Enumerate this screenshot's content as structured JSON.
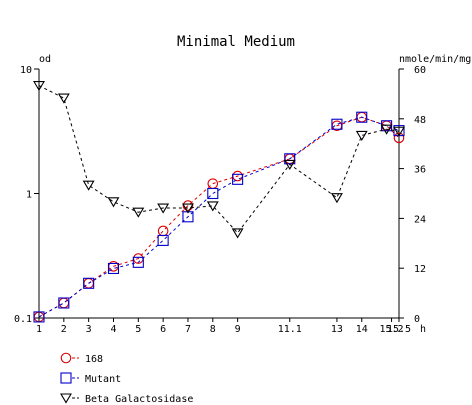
{
  "chart_data": {
    "type": "line",
    "title": "Minimal Medium",
    "left_axis": {
      "label": "od",
      "scale": "log",
      "range": [
        0.1,
        10
      ],
      "ticks": [
        {
          "value": 10,
          "label": "10"
        },
        {
          "value": 1,
          "label": "1"
        },
        {
          "value": 0.1,
          "label": "0.1"
        }
      ]
    },
    "right_axis": {
      "label": "nmole/min/mg",
      "scale": "linear",
      "range": [
        0,
        60
      ],
      "ticks": [
        {
          "value": 60,
          "label": "60"
        },
        {
          "value": 48,
          "label": "48"
        },
        {
          "value": 36,
          "label": "36"
        },
        {
          "value": 24,
          "label": "24"
        },
        {
          "value": 12,
          "label": "12"
        },
        {
          "value": 0,
          "label": "0"
        }
      ]
    },
    "x_axis": {
      "unit": "h",
      "range": [
        1,
        15.5
      ],
      "ticks": [
        {
          "value": 1,
          "label": "1"
        },
        {
          "value": 2,
          "label": "2"
        },
        {
          "value": 3,
          "label": "3"
        },
        {
          "value": 4,
          "label": "4"
        },
        {
          "value": 5,
          "label": "5"
        },
        {
          "value": 6,
          "label": "6"
        },
        {
          "value": 7,
          "label": "7"
        },
        {
          "value": 8,
          "label": "8"
        },
        {
          "value": 9,
          "label": "9"
        },
        {
          "value": 11.1,
          "label": "11.1"
        },
        {
          "value": 13,
          "label": "13"
        },
        {
          "value": 14,
          "label": "14"
        },
        {
          "value": 15.2,
          "label": "15.2"
        },
        {
          "value": 15.5,
          "label": "15.5"
        }
      ]
    },
    "series": [
      {
        "name": "168",
        "axis": "left",
        "marker": "circle",
        "color": "#dd0000",
        "points": [
          [
            1,
            0.102
          ],
          [
            2,
            0.132
          ],
          [
            3,
            0.19
          ],
          [
            4,
            0.26
          ],
          [
            5,
            0.3
          ],
          [
            6,
            0.5
          ],
          [
            7,
            0.8
          ],
          [
            8,
            1.2
          ],
          [
            9,
            1.38
          ],
          [
            11.1,
            1.9
          ],
          [
            13,
            3.5
          ],
          [
            14,
            4.1
          ],
          [
            15,
            3.5
          ],
          [
            15.5,
            2.8
          ]
        ]
      },
      {
        "name": "Mutant",
        "axis": "left",
        "marker": "square",
        "color": "#0000cc",
        "points": [
          [
            1,
            0.102
          ],
          [
            2,
            0.132
          ],
          [
            3,
            0.19
          ],
          [
            4,
            0.25
          ],
          [
            5,
            0.28
          ],
          [
            6,
            0.42
          ],
          [
            7,
            0.65
          ],
          [
            8,
            1.0
          ],
          [
            9,
            1.3
          ],
          [
            11.1,
            1.9
          ],
          [
            13,
            3.6
          ],
          [
            14,
            4.1
          ],
          [
            15,
            3.5
          ],
          [
            15.5,
            3.2
          ]
        ]
      },
      {
        "name": "Beta Galactosidase",
        "axis": "right",
        "marker": "triangle-down",
        "color": "#000000",
        "points": [
          [
            1,
            56
          ],
          [
            2,
            53
          ],
          [
            3,
            32
          ],
          [
            4,
            28
          ],
          [
            5,
            25.5
          ],
          [
            6,
            26.5
          ],
          [
            7,
            26.5
          ],
          [
            8,
            27
          ],
          [
            9,
            20.5
          ],
          [
            11.1,
            37
          ],
          [
            13,
            29
          ],
          [
            14,
            44
          ],
          [
            15,
            45.5
          ],
          [
            15.5,
            45
          ]
        ]
      }
    ]
  }
}
